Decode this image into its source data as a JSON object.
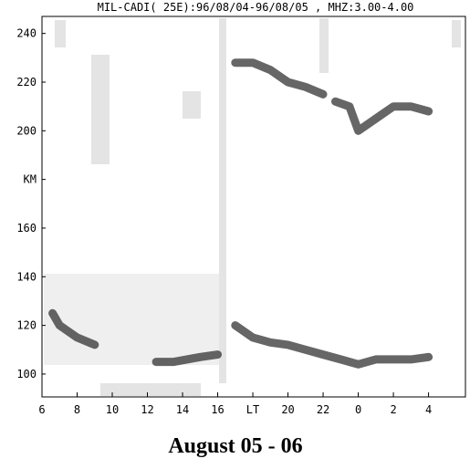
{
  "chart_data": {
    "type": "line",
    "title": "MIL-CADI( 25E):96/08/04-96/08/05 , MHZ:3.00-4.00",
    "caption": "August 05 - 06",
    "xlim": [
      6,
      30.1
    ],
    "ylim": [
      90.6,
      247
    ],
    "xticks": [
      6,
      8,
      10,
      12,
      14,
      16,
      {
        "value": 18,
        "label": "LT"
      },
      20,
      22,
      {
        "value": 24,
        "label": "0"
      },
      {
        "value": 26,
        "label": "2"
      },
      {
        "value": 28,
        "label": "4"
      }
    ],
    "yticks": [
      100,
      120,
      140,
      160,
      {
        "value": 180,
        "label": "KM"
      },
      200,
      220,
      240
    ],
    "series": [
      {
        "color": "#333333",
        "x": [
          6.6,
          7,
          8,
          9,
          null,
          12.5,
          13.5,
          15,
          16,
          null,
          17,
          18,
          19,
          20,
          21,
          22,
          23,
          24,
          25,
          26,
          27,
          28
        ],
        "values": [
          125,
          120,
          115,
          112,
          null,
          105,
          105,
          107,
          108,
          null,
          120,
          115,
          113,
          112,
          110,
          108,
          106,
          104,
          106,
          106,
          106,
          107
        ]
      },
      {
        "color": "#333333",
        "x": [
          17,
          18,
          19,
          20,
          21,
          22,
          null,
          22.7,
          23.5,
          24,
          25,
          26,
          27,
          28
        ],
        "values": [
          228,
          228,
          225,
          220,
          218,
          215,
          null,
          212,
          210,
          200,
          205,
          210,
          210,
          208
        ]
      }
    ]
  }
}
